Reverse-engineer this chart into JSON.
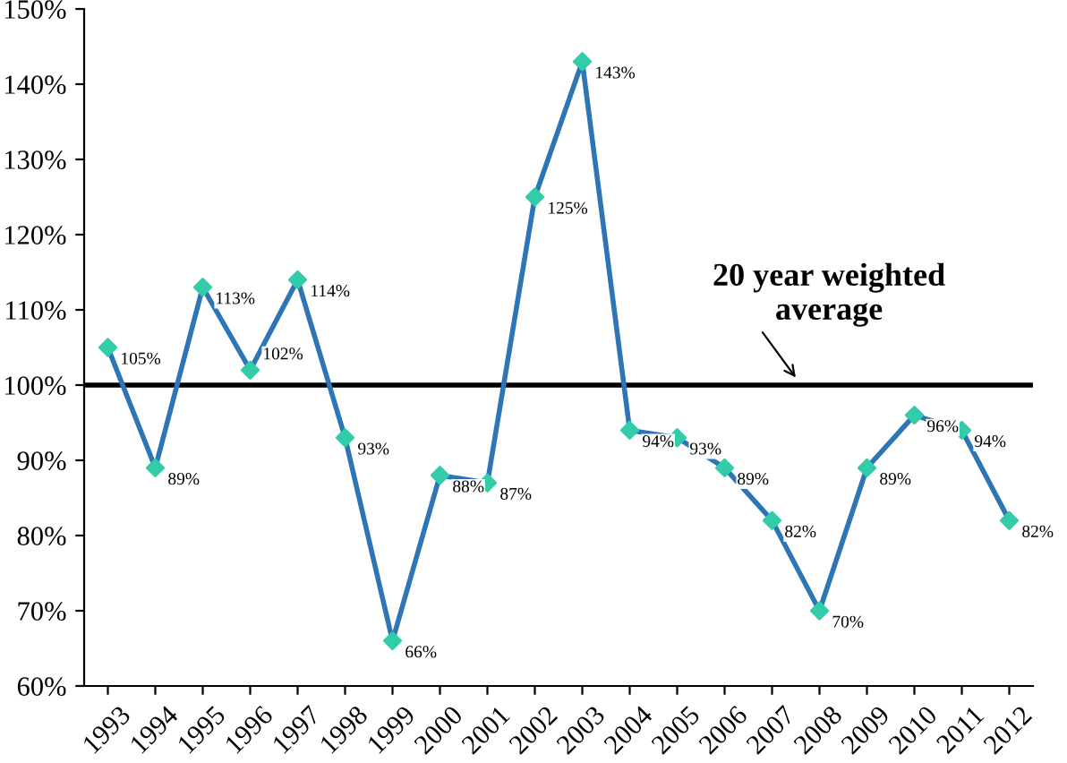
{
  "chart_data": {
    "type": "line",
    "categories": [
      "1993",
      "1994",
      "1995",
      "1996",
      "1997",
      "1998",
      "1999",
      "2000",
      "2001",
      "2002",
      "2003",
      "2004",
      "2005",
      "2006",
      "2007",
      "2008",
      "2009",
      "2010",
      "2011",
      "2012"
    ],
    "series": [
      {
        "color": "#2e75b6",
        "colors": [
          "#33ccaa",
          "#33ccaa",
          "#33ccaa",
          "#33ccaa",
          "#33ccaa",
          "#33ccaa",
          "#33ccaa",
          "#33ccaa",
          "#33ccaa",
          "#33ccaa",
          "#33ccaa",
          "#33ccaa",
          "#33ccaa",
          "#33ccaa",
          "#33ccaa",
          "#33ccaa",
          "#33ccaa",
          "#33ccaa",
          "#33ccaa",
          "#33ccaa"
        ],
        "values": [
          105,
          89,
          113,
          102,
          114,
          93,
          66,
          88,
          87,
          125,
          143,
          94,
          93,
          89,
          82,
          70,
          89,
          96,
          94,
          82
        ],
        "value_labels": [
          "105%",
          "89%",
          "113%",
          "102%",
          "114%",
          "93%",
          "66%",
          "88%",
          "87%",
          "125%",
          "143%",
          "94%",
          "93%",
          "89%",
          "82%",
          "70%",
          "89%",
          "96%",
          "94%",
          "82%"
        ]
      }
    ],
    "ylim": [
      60,
      150
    ],
    "yticks": [
      {
        "value": 60,
        "label": "60%"
      },
      {
        "value": 70,
        "label": "70%"
      },
      {
        "value": 80,
        "label": "80%"
      },
      {
        "value": 90,
        "label": "90%"
      },
      {
        "value": 100,
        "label": "100%"
      },
      {
        "value": 110,
        "label": "110%"
      },
      {
        "value": 120,
        "label": "120%"
      },
      {
        "value": 130,
        "label": "130%"
      },
      {
        "value": 140,
        "label": "140%"
      },
      {
        "value": 150,
        "label": "150%"
      }
    ],
    "ref_lines": [
      {
        "axis": "y",
        "value": 100,
        "label": "20 year weighted\naverage",
        "color": "#000000",
        "line_style": "solid"
      }
    ],
    "marker": "diamond",
    "line_style": "solid",
    "grid": false
  }
}
